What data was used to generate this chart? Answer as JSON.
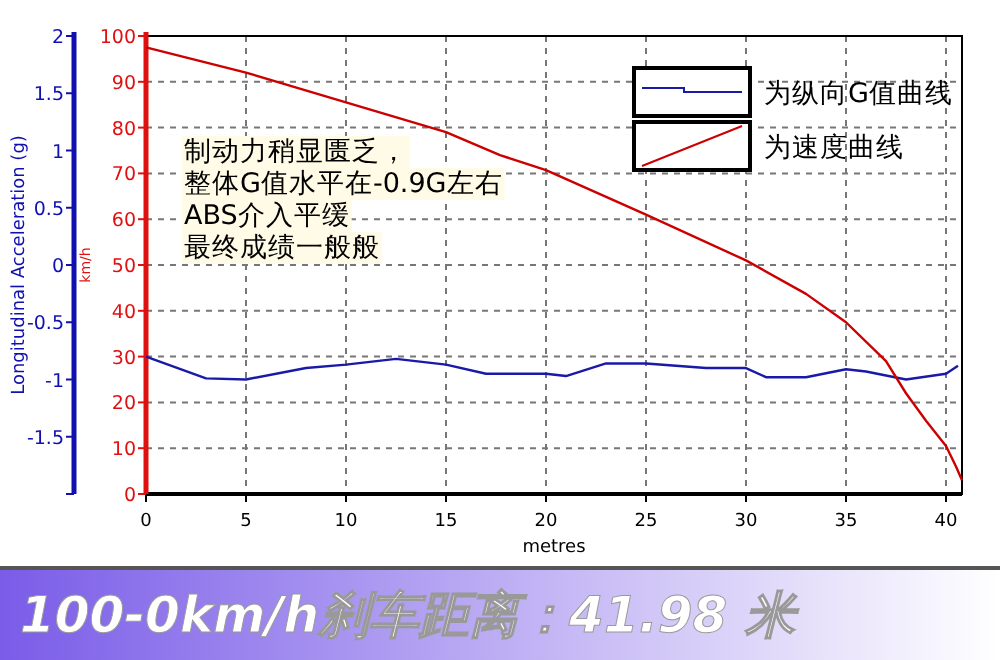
{
  "chart_data": {
    "type": "line",
    "title": "100-0km/h刹车距离：41.98 米",
    "xlabel": "metres",
    "ylabel": "km/h",
    "y2label": "Longitudinal Acceleration (g)",
    "xlim": [
      0,
      40.8
    ],
    "xticks": [
      0,
      5,
      10,
      15,
      20,
      25,
      30,
      35,
      40
    ],
    "ylim": [
      0,
      100
    ],
    "yticks": [
      0,
      10,
      20,
      30,
      40,
      50,
      60,
      70,
      80,
      90,
      100
    ],
    "y2lim": [
      -2,
      2
    ],
    "y2ticks": [
      {
        "value": -2,
        "label": null
      },
      -1.5,
      -1,
      -0.5,
      0,
      0.5,
      1,
      1.5,
      2
    ],
    "grid": true,
    "legend": "top right",
    "annotations": [
      "制动力稍显匮乏，",
      "整体G值水平在-0.9G左右",
      "ABS介入平缓",
      "最终成绩一般般"
    ],
    "series": [
      {
        "name": "为纵向G值曲线",
        "color": "#1a1aa8",
        "axis": "y2",
        "x": [
          0,
          3,
          5,
          8,
          10,
          12.5,
          15,
          17,
          20,
          21,
          23,
          25,
          28,
          30,
          31,
          33,
          35,
          36,
          38,
          40,
          40.6
        ],
        "values": [
          -0.8,
          -0.99,
          -1.0,
          -0.9,
          -0.87,
          -0.82,
          -0.87,
          -0.95,
          -0.95,
          -0.97,
          -0.86,
          -0.86,
          -0.9,
          -0.9,
          -0.98,
          -0.98,
          -0.91,
          -0.93,
          -1.0,
          -0.95,
          -0.88
        ]
      },
      {
        "name": "为速度曲线",
        "color": "#cc0000",
        "axis": "y",
        "x": [
          0,
          5,
          10,
          15,
          17.7,
          20,
          25,
          30,
          33,
          35,
          37,
          38,
          39,
          40,
          40.5,
          40.8
        ],
        "values": [
          97.5,
          92,
          85.5,
          79,
          74,
          70.7,
          61,
          51,
          43.7,
          37.5,
          29,
          22,
          16,
          10.5,
          6,
          3
        ]
      }
    ]
  }
}
